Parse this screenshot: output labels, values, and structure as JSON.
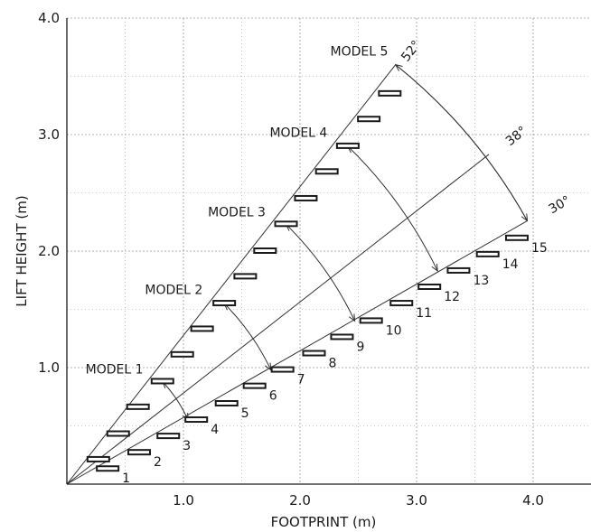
{
  "chart_data": {
    "type": "scatter",
    "xlabel": "FOOTPRINT (m)",
    "ylabel": "LIFT HEIGHT (m)",
    "xlim": [
      0,
      4.5
    ],
    "ylim": [
      0,
      4.0
    ],
    "x_ticks": [
      "1.0",
      "2.0",
      "3.0",
      "4.0"
    ],
    "y_ticks": [
      "1.0",
      "2.0",
      "3.0",
      "4.0"
    ],
    "grid": true,
    "angle_lines": [
      {
        "label": "52°",
        "angle_deg": 52
      },
      {
        "label": "38°",
        "angle_deg": 38
      },
      {
        "label": "30°",
        "angle_deg": 30
      }
    ],
    "steps_52": [
      {
        "x": 0.27,
        "y": 0.21
      },
      {
        "x": 0.44,
        "y": 0.43
      },
      {
        "x": 0.61,
        "y": 0.66
      },
      {
        "x": 0.82,
        "y": 0.88
      },
      {
        "x": 0.99,
        "y": 1.11
      },
      {
        "x": 1.16,
        "y": 1.33
      },
      {
        "x": 1.35,
        "y": 1.55
      },
      {
        "x": 1.53,
        "y": 1.78
      },
      {
        "x": 1.7,
        "y": 2.0
      },
      {
        "x": 1.88,
        "y": 2.23
      },
      {
        "x": 2.05,
        "y": 2.45
      },
      {
        "x": 2.23,
        "y": 2.68
      },
      {
        "x": 2.41,
        "y": 2.9
      },
      {
        "x": 2.59,
        "y": 3.13
      },
      {
        "x": 2.77,
        "y": 3.35
      }
    ],
    "steps_30": [
      {
        "label": "1",
        "x": 0.35,
        "y": 0.13
      },
      {
        "label": "2",
        "x": 0.62,
        "y": 0.27
      },
      {
        "label": "3",
        "x": 0.87,
        "y": 0.41
      },
      {
        "label": "4",
        "x": 1.11,
        "y": 0.55
      },
      {
        "label": "5",
        "x": 1.37,
        "y": 0.69
      },
      {
        "label": "6",
        "x": 1.61,
        "y": 0.84
      },
      {
        "label": "7",
        "x": 1.85,
        "y": 0.98
      },
      {
        "label": "8",
        "x": 2.12,
        "y": 1.12
      },
      {
        "label": "9",
        "x": 2.36,
        "y": 1.26
      },
      {
        "label": "10",
        "x": 2.61,
        "y": 1.4
      },
      {
        "label": "11",
        "x": 2.87,
        "y": 1.55
      },
      {
        "label": "12",
        "x": 3.11,
        "y": 1.69
      },
      {
        "label": "13",
        "x": 3.36,
        "y": 1.83
      },
      {
        "label": "14",
        "x": 3.61,
        "y": 1.97
      },
      {
        "label": "15",
        "x": 3.86,
        "y": 2.11
      }
    ],
    "models": [
      {
        "label": "MODEL 1",
        "top": {
          "x": 0.82,
          "y": 0.88
        },
        "bottom": {
          "x": 1.04,
          "y": 0.55
        }
      },
      {
        "label": "MODEL 2",
        "top": {
          "x": 1.35,
          "y": 1.55
        },
        "bottom": {
          "x": 1.75,
          "y": 0.98
        }
      },
      {
        "label": "MODEL 3",
        "top": {
          "x": 1.88,
          "y": 2.23
        },
        "bottom": {
          "x": 2.47,
          "y": 1.4
        }
      },
      {
        "label": "MODEL 4",
        "top": {
          "x": 2.41,
          "y": 2.9
        },
        "bottom": {
          "x": 3.18,
          "y": 1.83
        }
      },
      {
        "label": "MODEL 5",
        "top": {
          "x": 2.82,
          "y": 3.6
        },
        "bottom": {
          "x": 3.95,
          "y": 2.26
        }
      }
    ]
  }
}
